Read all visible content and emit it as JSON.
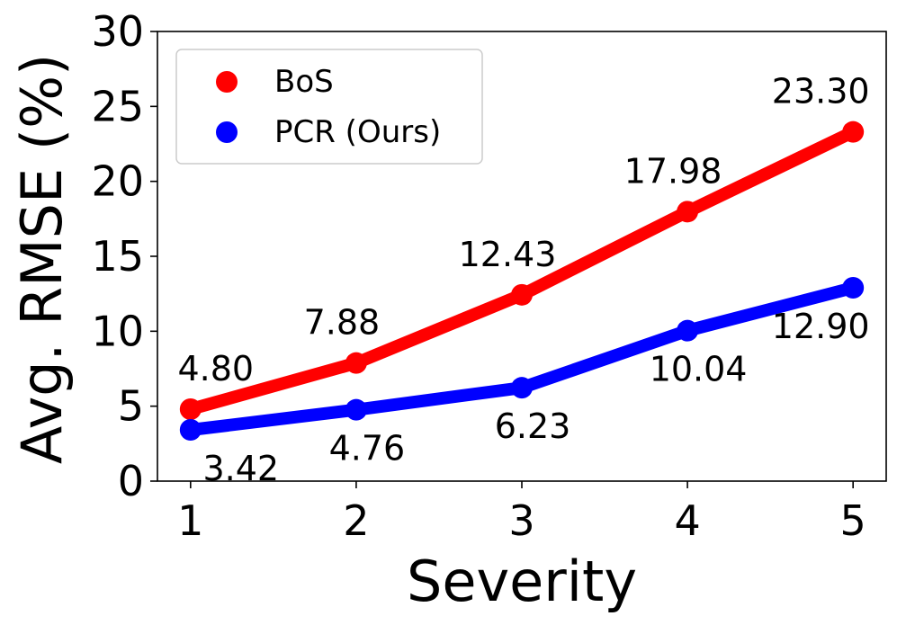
{
  "chart_data": {
    "type": "line",
    "title": "",
    "xlabel": "Severity",
    "ylabel": "Avg. RMSE (%)",
    "x": [
      1,
      2,
      3,
      4,
      5
    ],
    "xlim": [
      0.8,
      5.2
    ],
    "ylim": [
      0,
      30
    ],
    "xticks": [
      "1",
      "2",
      "3",
      "4",
      "5"
    ],
    "yticks": [
      "0",
      "5",
      "10",
      "15",
      "20",
      "25",
      "30"
    ],
    "grid": false,
    "legend_position": "top-left",
    "series": [
      {
        "name": "BoS",
        "color": "#ff0000",
        "values": [
          4.8,
          7.88,
          12.43,
          17.98,
          23.3
        ],
        "labels": [
          "4.80",
          "7.88",
          "12.43",
          "17.98",
          "23.30"
        ],
        "label_placement": "above"
      },
      {
        "name": "PCR (Ours)",
        "color": "#0000ff",
        "values": [
          3.42,
          4.76,
          6.23,
          10.04,
          12.9
        ],
        "labels": [
          "3.42",
          "4.76",
          "6.23",
          "10.04",
          "12.90"
        ],
        "label_placement": "below"
      }
    ]
  }
}
